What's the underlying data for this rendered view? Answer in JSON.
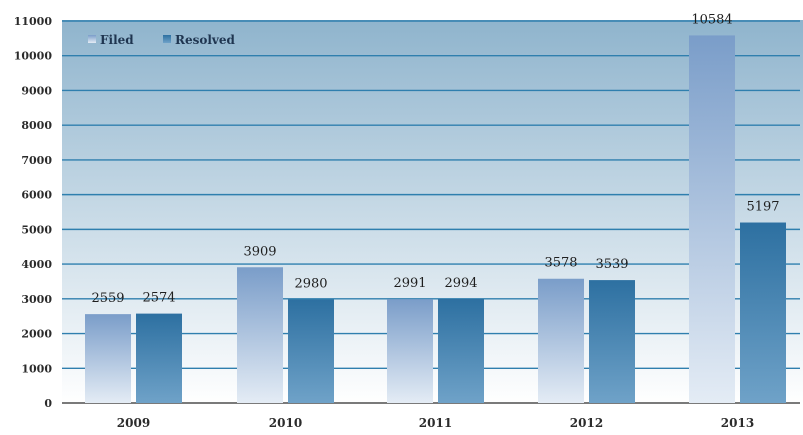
{
  "chart_data": {
    "type": "bar",
    "title": "",
    "categories": [
      "2009",
      "2010",
      "2011",
      "2012",
      "2013"
    ],
    "series": [
      {
        "name": "Filed",
        "values": [
          2559,
          3909,
          2991,
          3578,
          10584
        ]
      },
      {
        "name": "Resolved",
        "values": [
          2574,
          2980,
          2994,
          3539,
          5197
        ]
      }
    ],
    "data_labels": [
      [
        "2559",
        "3909",
        "2991",
        "3578",
        "10584"
      ],
      [
        "2574",
        "2980",
        "2994",
        "3539",
        "5197"
      ]
    ],
    "y_ticks": [
      "0",
      "1000",
      "2000",
      "3000",
      "4000",
      "5000",
      "6000",
      "7000",
      "8000",
      "9000",
      "10000",
      "11000"
    ],
    "ylim": [
      0,
      11000
    ],
    "grid": true,
    "legend": {
      "position": "top-left",
      "labels": [
        "Filed",
        "Resolved"
      ]
    },
    "colors": {
      "plot_background": "#8fb4cd",
      "gridline": "#2f7fae",
      "filed_top": "#7a9dc9",
      "filed_bottom": "#e4ecf5",
      "resolved_top": "#2d70a1",
      "resolved_bottom": "#6fa2c8"
    }
  }
}
